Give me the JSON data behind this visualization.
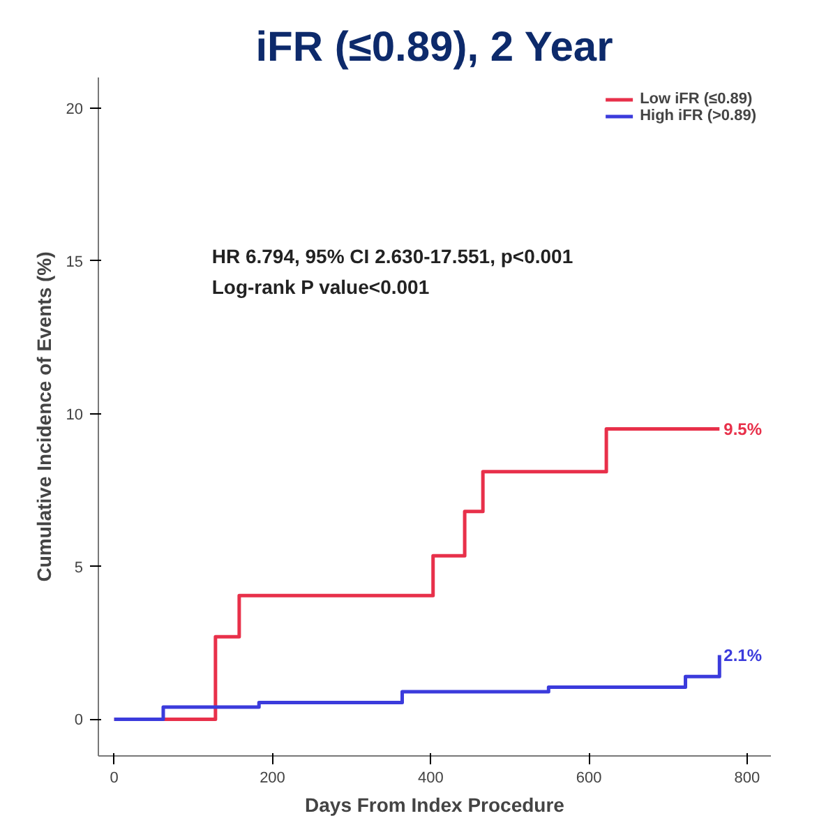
{
  "chart_data": {
    "type": "step",
    "title": "iFR (≤0.89), 2 Year",
    "xlabel": "Days From Index Procedure",
    "ylabel": "Cumulative Incidence of Events (%)",
    "xlim": [
      -20,
      830
    ],
    "ylim": [
      -1.2,
      21
    ],
    "xticks": [
      0,
      200,
      400,
      600,
      800
    ],
    "yticks": [
      0,
      5,
      10,
      15,
      20
    ],
    "grid": false,
    "legend": "top right",
    "line_style": "solid",
    "series": [
      {
        "name": "Low iFR (≤0.89)",
        "color": "#e8304a",
        "x": [
          0,
          128,
          158,
          403,
          443,
          466,
          622,
          765
        ],
        "values": [
          0,
          2.7,
          4.05,
          5.35,
          6.8,
          8.1,
          9.5,
          9.5
        ]
      },
      {
        "name": "High iFR (>0.89)",
        "color": "#3b3bdc",
        "x": [
          0,
          62,
          183,
          364,
          549,
          722,
          765
        ],
        "values": [
          0,
          0.4,
          0.55,
          0.9,
          1.05,
          1.4,
          2.1
        ]
      }
    ],
    "annotations": [
      {
        "text": "9.5%",
        "x": 765,
        "y": 9.5
      },
      {
        "text": "2.1%",
        "x": 765,
        "y": 2.1
      },
      "HR 6.794, 95% CI 2.630-17.551, p<0.001",
      "Log-rank P value<0.001"
    ]
  }
}
